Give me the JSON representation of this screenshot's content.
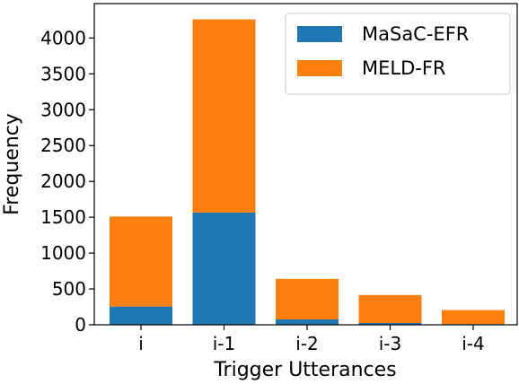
{
  "chart_data": {
    "type": "bar",
    "stacked": true,
    "categories": [
      "i",
      "i-1",
      "i-2",
      "i-3",
      "i-4"
    ],
    "series": [
      {
        "name": "MaSaC-EFR",
        "color": "#1f77b4",
        "values": [
          255,
          1565,
          75,
          25,
          10
        ]
      },
      {
        "name": "MELD-FR",
        "color": "#ff7f0e",
        "values": [
          1255,
          2695,
          565,
          390,
          195
        ]
      }
    ],
    "xlabel": "Trigger Utterances",
    "ylabel": "Frequency",
    "ylim": [
      0,
      4480
    ],
    "yticks": [
      "0",
      "500",
      "1000",
      "1500",
      "2000",
      "2500",
      "3000",
      "3500",
      "4000"
    ],
    "legend": "top-right",
    "grid": false
  }
}
